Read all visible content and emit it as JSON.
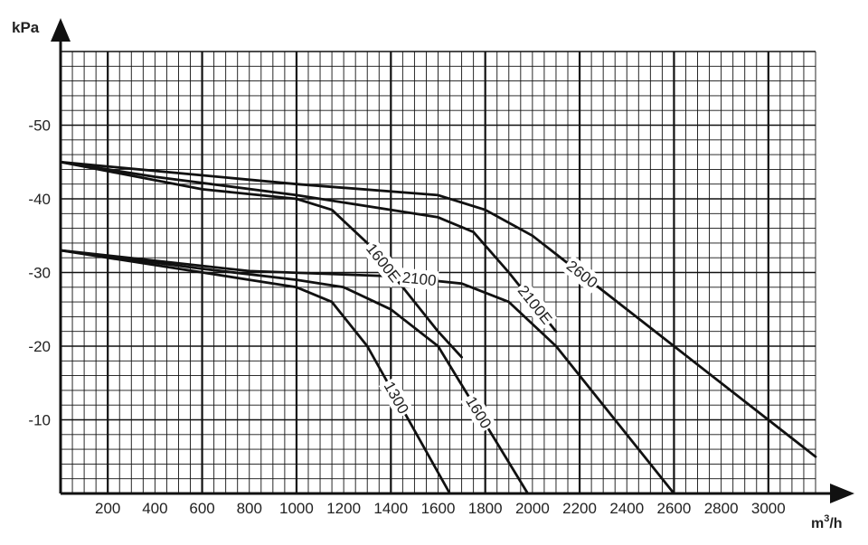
{
  "chart_data": {
    "type": "line",
    "ylabel": "kPa",
    "xlabel_base": "m",
    "xlabel_sup": "3",
    "xlabel_tail": "/h",
    "xlim": [
      0,
      3200
    ],
    "ylim": [
      0,
      60
    ],
    "x_ticks": [
      {
        "value": 200,
        "label": "200"
      },
      {
        "value": 400,
        "label": "400"
      },
      {
        "value": 600,
        "label": "600"
      },
      {
        "value": 800,
        "label": "800"
      },
      {
        "value": 1000,
        "label": "1000"
      },
      {
        "value": 1200,
        "label": "1200"
      },
      {
        "value": 1400,
        "label": "1400"
      },
      {
        "value": 1600,
        "label": "1600"
      },
      {
        "value": 1800,
        "label": "1800"
      },
      {
        "value": 2000,
        "label": "2000"
      },
      {
        "value": 2200,
        "label": "2200"
      },
      {
        "value": 2400,
        "label": "2400"
      },
      {
        "value": 2600,
        "label": "2600"
      },
      {
        "value": 2800,
        "label": "2800"
      },
      {
        "value": 3000,
        "label": "3000"
      }
    ],
    "y_ticks": [
      {
        "value": 10,
        "label": "-10"
      },
      {
        "value": 20,
        "label": "-20"
      },
      {
        "value": 30,
        "label": "-30"
      },
      {
        "value": 40,
        "label": "-40"
      },
      {
        "value": 50,
        "label": "-50"
      }
    ],
    "grid": true,
    "series": [
      {
        "name": "1300",
        "points": [
          [
            0,
            33
          ],
          [
            400,
            31
          ],
          [
            800,
            29
          ],
          [
            1000,
            28
          ],
          [
            1150,
            26
          ],
          [
            1300,
            20
          ],
          [
            1650,
            0
          ]
        ]
      },
      {
        "name": "1600",
        "points": [
          [
            0,
            33
          ],
          [
            600,
            30.5
          ],
          [
            1000,
            29
          ],
          [
            1200,
            28
          ],
          [
            1400,
            25
          ],
          [
            1600,
            20
          ],
          [
            1980,
            0
          ]
        ]
      },
      {
        "name": "2100",
        "points": [
          [
            0,
            33
          ],
          [
            800,
            30.2
          ],
          [
            1400,
            29.5
          ],
          [
            1700,
            28.5
          ],
          [
            1900,
            26
          ],
          [
            2100,
            20
          ],
          [
            2600,
            0
          ]
        ]
      },
      {
        "name": "1600E",
        "points": [
          [
            0,
            45
          ],
          [
            600,
            41.3
          ],
          [
            1000,
            40
          ],
          [
            1150,
            38.5
          ],
          [
            1300,
            34
          ],
          [
            1450,
            28
          ],
          [
            1600,
            22
          ],
          [
            1700,
            18.5
          ]
        ]
      },
      {
        "name": "2100E",
        "points": [
          [
            0,
            45
          ],
          [
            400,
            43
          ],
          [
            1000,
            40.5
          ],
          [
            1600,
            37.5
          ],
          [
            1750,
            35.5
          ],
          [
            1900,
            30
          ],
          [
            2100,
            22
          ]
        ]
      },
      {
        "name": "2600",
        "points": [
          [
            0,
            45
          ],
          [
            1000,
            42
          ],
          [
            1600,
            40.5
          ],
          [
            1800,
            38.5
          ],
          [
            2000,
            35
          ],
          [
            2600,
            20
          ],
          [
            3200,
            5
          ]
        ]
      }
    ],
    "labels": [
      {
        "series": "1300",
        "text": "1300"
      },
      {
        "series": "1600",
        "text": "1600"
      },
      {
        "series": "2100",
        "text": "2100"
      },
      {
        "series": "1600E",
        "text": "1600E"
      },
      {
        "series": "2100E",
        "text": "2100E"
      },
      {
        "series": "2600",
        "text": "2600"
      }
    ]
  }
}
